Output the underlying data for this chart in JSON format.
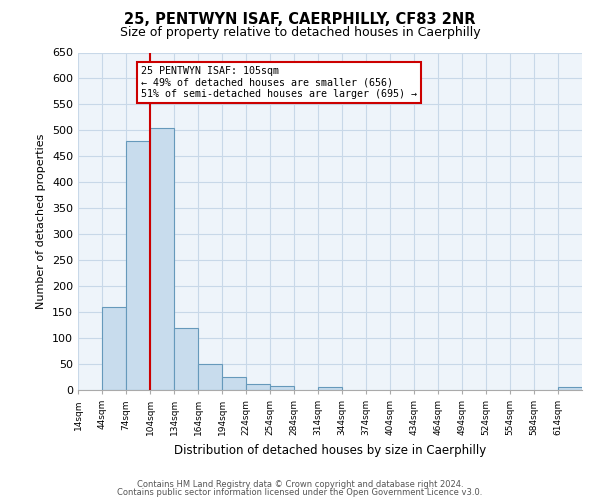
{
  "title": "25, PENTWYN ISAF, CAERPHILLY, CF83 2NR",
  "subtitle": "Size of property relative to detached houses in Caerphilly",
  "xlabel": "Distribution of detached houses by size in Caerphilly",
  "ylabel": "Number of detached properties",
  "bar_color": "#c8dced",
  "bar_edge_color": "#6699bb",
  "plot_bg_color": "#eef4fa",
  "bins_left": [
    14,
    44,
    74,
    104,
    134,
    164,
    194,
    224,
    254,
    284,
    314,
    344,
    374,
    404,
    434,
    464,
    494,
    524,
    554,
    584,
    614
  ],
  "bin_width": 30,
  "values": [
    0,
    160,
    480,
    505,
    120,
    50,
    25,
    12,
    8,
    0,
    5,
    0,
    0,
    0,
    0,
    0,
    0,
    0,
    0,
    0,
    5
  ],
  "ylim": [
    0,
    650
  ],
  "yticks": [
    0,
    50,
    100,
    150,
    200,
    250,
    300,
    350,
    400,
    450,
    500,
    550,
    600,
    650
  ],
  "xtick_labels": [
    "14sqm",
    "44sqm",
    "74sqm",
    "104sqm",
    "134sqm",
    "164sqm",
    "194sqm",
    "224sqm",
    "254sqm",
    "284sqm",
    "314sqm",
    "344sqm",
    "374sqm",
    "404sqm",
    "434sqm",
    "464sqm",
    "494sqm",
    "524sqm",
    "554sqm",
    "584sqm",
    "614sqm"
  ],
  "reference_line_x": 104,
  "annotation_line1": "25 PENTWYN ISAF: 105sqm",
  "annotation_line2": "← 49% of detached houses are smaller (656)",
  "annotation_line3": "51% of semi-detached houses are larger (695) →",
  "ref_line_color": "#cc0000",
  "annotation_box_color": "#ffffff",
  "annotation_box_edge_color": "#cc0000",
  "footer_line1": "Contains HM Land Registry data © Crown copyright and database right 2024.",
  "footer_line2": "Contains public sector information licensed under the Open Government Licence v3.0.",
  "background_color": "#ffffff",
  "grid_color": "#c8d8e8",
  "title_fontsize": 10.5,
  "subtitle_fontsize": 9
}
